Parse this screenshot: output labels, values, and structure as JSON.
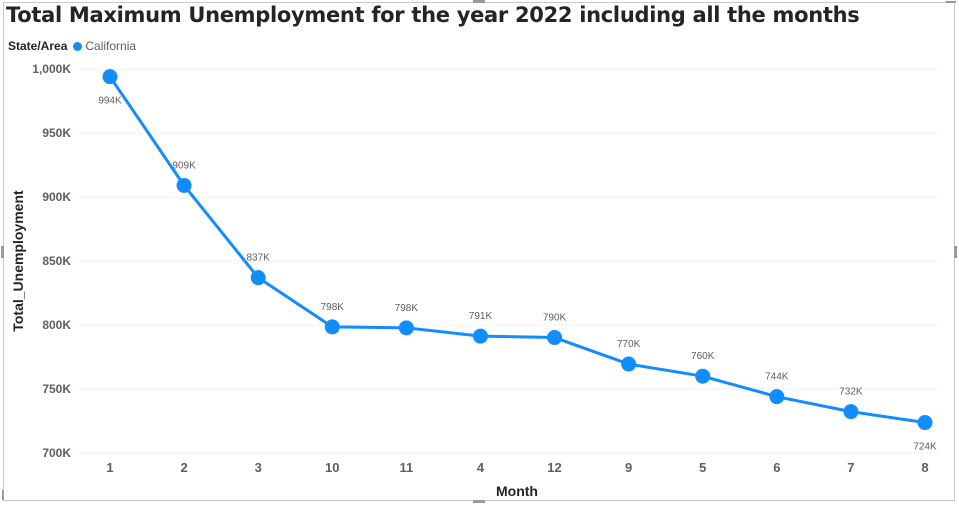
{
  "chart_data": {
    "type": "line",
    "title": "Total Maximum Unemployment for the year 2022 including all the months",
    "xlabel": "Month",
    "ylabel": "Total_Unemployment",
    "legend": {
      "title": "State/Area",
      "position": "top-left"
    },
    "categories": [
      "1",
      "2",
      "3",
      "10",
      "11",
      "4",
      "12",
      "9",
      "5",
      "6",
      "7",
      "8"
    ],
    "series": [
      {
        "name": "California",
        "color": "#118DFF",
        "values": [
          994000,
          909000,
          837000,
          798500,
          797800,
          791300,
          790200,
          769500,
          760000,
          744000,
          732300,
          723800
        ],
        "labels": [
          "994K",
          "909K",
          "837K",
          "798K",
          "798K",
          "791K",
          "790K",
          "770K",
          "760K",
          "744K",
          "732K",
          "724K"
        ]
      }
    ],
    "ylim": [
      700000,
      1000000
    ],
    "yticks": [
      700000,
      750000,
      800000,
      850000,
      900000,
      950000,
      1000000
    ],
    "ytick_labels": [
      "700K",
      "750K",
      "800K",
      "850K",
      "900K",
      "950K",
      "1,000K"
    ],
    "grid": true
  }
}
